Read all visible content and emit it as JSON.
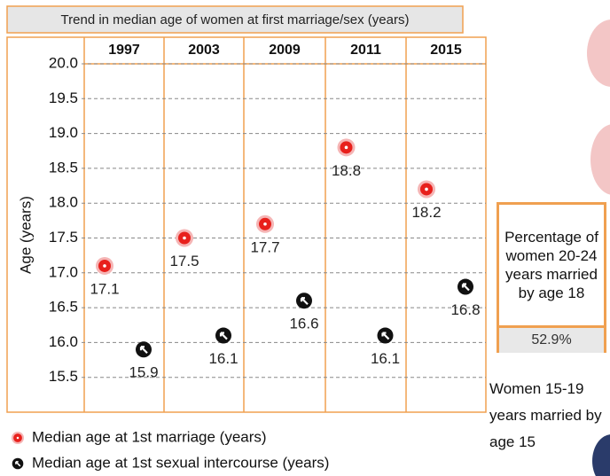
{
  "chart_data": {
    "type": "dot",
    "title": "Trend in median age of women at first marriage/sex (years)",
    "y_label": "Age (years)",
    "categories": [
      "1997",
      "2003",
      "2009",
      "2011",
      "2015"
    ],
    "series": [
      {
        "name": "Median age at 1st marriage (years)",
        "color": "#e8201c",
        "values": [
          17.1,
          17.5,
          17.7,
          18.8,
          18.2
        ]
      },
      {
        "name": "Median age at 1st sexual intercourse (years)",
        "color": "#111111",
        "values": [
          15.9,
          16.1,
          16.6,
          16.1,
          16.8
        ]
      }
    ],
    "ylim": [
      15,
      20
    ],
    "yticks": [
      {
        "value": 20,
        "label": "20.0"
      },
      19.5,
      {
        "value": 19,
        "label": "19.0"
      },
      18.5,
      {
        "value": 18,
        "label": "18.0"
      },
      17.5,
      {
        "value": 17,
        "label": "17.0"
      },
      16.5,
      {
        "value": 16,
        "label": "16.0"
      },
      15.5
    ],
    "grid": true
  },
  "side_panel": {
    "title": "Percentage of women 20-24 years married by age 18",
    "value": "52.9%",
    "note": "Women 15-19 years married by age 15"
  }
}
